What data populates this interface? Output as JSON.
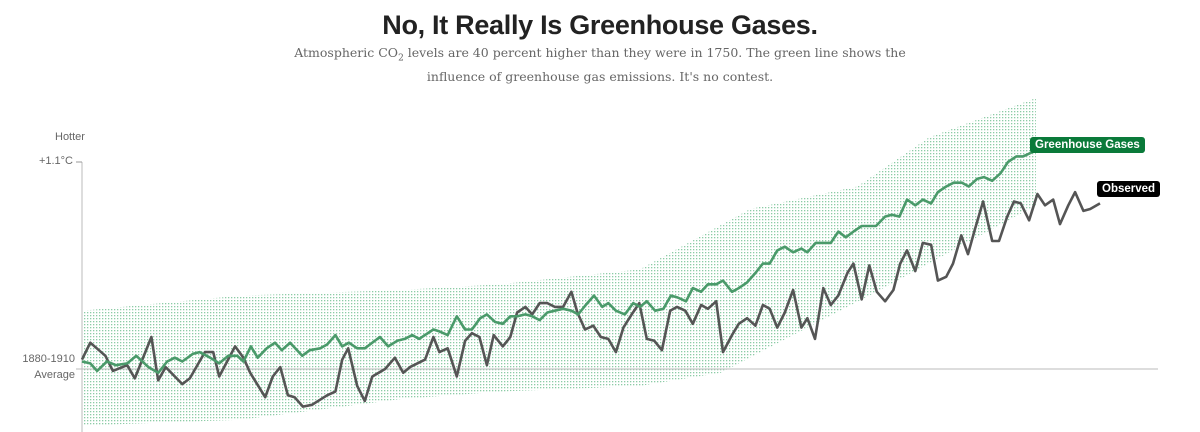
{
  "title": "No, It Really Is Greenhouse Gases.",
  "subtitle": {
    "part1": "Atmospheric CO",
    "sub": "2",
    "part2": " levels are 40 percent higher than they were in 1750. The green line shows the influence of greenhouse gas emissions. It's no contest."
  },
  "chart_data": {
    "type": "line",
    "title": "No, It Really Is Greenhouse Gases.",
    "ylabel_top": "Hotter",
    "y_ticks": [
      {
        "value": 1.1,
        "label": "+1.1°C"
      },
      {
        "value": 0,
        "label": "1880-1910 Average"
      }
    ],
    "xlim": [
      1880,
      2015
    ],
    "ylim": [
      -0.33,
      1.55
    ],
    "grid": false,
    "colors": {
      "greenhouse": "#4a9a6a",
      "greenhouse_label_bg": "#0a7a3a",
      "observed": "#555555",
      "observed_label_bg": "#000000",
      "band": "#8ccba6",
      "baseline": "#bbbbbb"
    },
    "series": [
      {
        "name": "Observed",
        "points": [
          [
            1880.0,
            0.05
          ],
          [
            1881.1,
            0.14
          ],
          [
            1883.1,
            0.07
          ],
          [
            1884.1,
            -0.01
          ],
          [
            1886.0,
            0.02
          ],
          [
            1887.0,
            -0.05
          ],
          [
            1889.2,
            0.17
          ],
          [
            1890.1,
            -0.06
          ],
          [
            1891.1,
            0.01
          ],
          [
            1893.3,
            -0.08
          ],
          [
            1894.3,
            -0.05
          ],
          [
            1896.3,
            0.09
          ],
          [
            1897.4,
            0.09
          ],
          [
            1898.2,
            -0.04
          ],
          [
            1900.3,
            0.12
          ],
          [
            1901.4,
            0.06
          ],
          [
            1902.3,
            -0.02
          ],
          [
            1904.3,
            -0.15
          ],
          [
            1905.3,
            -0.04
          ],
          [
            1906.3,
            0.01
          ],
          [
            1907.3,
            -0.14
          ],
          [
            1908.2,
            -0.15
          ],
          [
            1909.3,
            -0.2
          ],
          [
            1910.5,
            -0.19
          ],
          [
            1912.5,
            -0.14
          ],
          [
            1913.6,
            -0.12
          ],
          [
            1914.5,
            0.05
          ],
          [
            1915.3,
            0.11
          ],
          [
            1916.5,
            -0.09
          ],
          [
            1917.5,
            -0.17
          ],
          [
            1918.5,
            -0.04
          ],
          [
            1920.2,
            0.0
          ],
          [
            1921.5,
            0.06
          ],
          [
            1922.6,
            -0.02
          ],
          [
            1923.5,
            0.01
          ],
          [
            1925.5,
            0.05
          ],
          [
            1926.6,
            0.17
          ],
          [
            1927.4,
            0.09
          ],
          [
            1928.5,
            0.11
          ],
          [
            1929.7,
            -0.04
          ],
          [
            1930.8,
            0.15
          ],
          [
            1931.7,
            0.19
          ],
          [
            1932.7,
            0.17
          ],
          [
            1933.7,
            0.02
          ],
          [
            1934.6,
            0.18
          ],
          [
            1935.8,
            0.12
          ],
          [
            1936.8,
            0.17
          ],
          [
            1937.7,
            0.3
          ],
          [
            1938.8,
            0.33
          ],
          [
            1939.7,
            0.29
          ],
          [
            1940.7,
            0.35
          ],
          [
            1941.7,
            0.35
          ],
          [
            1942.7,
            0.33
          ],
          [
            1943.8,
            0.33
          ],
          [
            1944.9,
            0.41
          ],
          [
            1945.7,
            0.3
          ],
          [
            1946.7,
            0.21
          ],
          [
            1947.8,
            0.23
          ],
          [
            1948.8,
            0.17
          ],
          [
            1949.8,
            0.16
          ],
          [
            1950.8,
            0.09
          ],
          [
            1951.8,
            0.22
          ],
          [
            1952.9,
            0.29
          ],
          [
            1953.9,
            0.35
          ],
          [
            1954.9,
            0.16
          ],
          [
            1955.9,
            0.15
          ],
          [
            1956.9,
            0.1
          ],
          [
            1958.0,
            0.31
          ],
          [
            1958.9,
            0.33
          ],
          [
            1960.0,
            0.31
          ],
          [
            1961.0,
            0.24
          ],
          [
            1962.1,
            0.34
          ],
          [
            1963.0,
            0.32
          ],
          [
            1964.1,
            0.36
          ],
          [
            1965.0,
            0.09
          ],
          [
            1966.2,
            0.18
          ],
          [
            1967.1,
            0.24
          ],
          [
            1968.2,
            0.27
          ],
          [
            1969.3,
            0.23
          ],
          [
            1970.3,
            0.34
          ],
          [
            1971.2,
            0.32
          ],
          [
            1972.2,
            0.22
          ],
          [
            1973.2,
            0.3
          ],
          [
            1974.3,
            0.42
          ],
          [
            1975.4,
            0.22
          ],
          [
            1976.2,
            0.27
          ],
          [
            1977.2,
            0.16
          ],
          [
            1978.3,
            0.43
          ],
          [
            1979.3,
            0.34
          ],
          [
            1980.3,
            0.39
          ],
          [
            1981.5,
            0.51
          ],
          [
            1982.3,
            0.56
          ],
          [
            1983.4,
            0.37
          ],
          [
            1984.4,
            0.55
          ],
          [
            1985.4,
            0.41
          ],
          [
            1986.5,
            0.36
          ],
          [
            1987.6,
            0.42
          ],
          [
            1988.5,
            0.56
          ],
          [
            1989.4,
            0.63
          ],
          [
            1990.5,
            0.52
          ],
          [
            1991.5,
            0.67
          ],
          [
            1992.6,
            0.66
          ],
          [
            1993.5,
            0.47
          ],
          [
            1994.6,
            0.49
          ],
          [
            1995.5,
            0.56
          ],
          [
            1996.6,
            0.71
          ],
          [
            1997.5,
            0.61
          ],
          [
            1998.4,
            0.74
          ],
          [
            1999.5,
            0.89
          ],
          [
            2000.7,
            0.68
          ],
          [
            2001.6,
            0.68
          ],
          [
            2002.7,
            0.81
          ],
          [
            2003.6,
            0.89
          ],
          [
            2004.5,
            0.88
          ],
          [
            2005.6,
            0.79
          ],
          [
            2006.7,
            0.93
          ],
          [
            2007.7,
            0.87
          ],
          [
            2008.8,
            0.9
          ],
          [
            2009.7,
            0.77
          ],
          [
            2010.8,
            0.87
          ],
          [
            2011.7,
            0.94
          ],
          [
            2012.8,
            0.84
          ],
          [
            2013.7,
            0.85
          ],
          [
            2015.0,
            0.88
          ]
        ]
      },
      {
        "name": "Greenhouse Gases",
        "points": [
          [
            1880.0,
            0.04
          ],
          [
            1881.1,
            0.03
          ],
          [
            1882.0,
            -0.01
          ],
          [
            1883.3,
            0.04
          ],
          [
            1884.5,
            0.02
          ],
          [
            1886.0,
            0.03
          ],
          [
            1887.2,
            0.07
          ],
          [
            1888.8,
            0.01
          ],
          [
            1890.1,
            -0.02
          ],
          [
            1891.3,
            0.04
          ],
          [
            1892.3,
            0.06
          ],
          [
            1893.3,
            0.04
          ],
          [
            1894.7,
            0.08
          ],
          [
            1895.6,
            0.09
          ],
          [
            1897.0,
            0.06
          ],
          [
            1898.2,
            0.03
          ],
          [
            1899.4,
            0.07
          ],
          [
            1900.6,
            0.07
          ],
          [
            1901.4,
            0.04
          ],
          [
            1902.4,
            0.12
          ],
          [
            1903.3,
            0.06
          ],
          [
            1904.5,
            0.11
          ],
          [
            1905.6,
            0.14
          ],
          [
            1906.5,
            0.1
          ],
          [
            1907.6,
            0.14
          ],
          [
            1909.2,
            0.07
          ],
          [
            1910.2,
            0.1
          ],
          [
            1911.6,
            0.11
          ],
          [
            1912.5,
            0.13
          ],
          [
            1913.6,
            0.18
          ],
          [
            1914.5,
            0.12
          ],
          [
            1915.4,
            0.14
          ],
          [
            1916.5,
            0.11
          ],
          [
            1917.5,
            0.11
          ],
          [
            1919.5,
            0.17
          ],
          [
            1920.6,
            0.12
          ],
          [
            1921.8,
            0.15
          ],
          [
            1922.8,
            0.16
          ],
          [
            1923.8,
            0.18
          ],
          [
            1924.7,
            0.16
          ],
          [
            1926.6,
            0.21
          ],
          [
            1927.4,
            0.2
          ],
          [
            1928.5,
            0.18
          ],
          [
            1929.7,
            0.28
          ],
          [
            1930.8,
            0.21
          ],
          [
            1931.7,
            0.21
          ],
          [
            1932.8,
            0.27
          ],
          [
            1933.7,
            0.29
          ],
          [
            1934.8,
            0.25
          ],
          [
            1935.8,
            0.24
          ],
          [
            1936.8,
            0.28
          ],
          [
            1937.7,
            0.28
          ],
          [
            1938.8,
            0.29
          ],
          [
            1939.7,
            0.28
          ],
          [
            1940.7,
            0.26
          ],
          [
            1941.7,
            0.3
          ],
          [
            1942.7,
            0.31
          ],
          [
            1943.8,
            0.32
          ],
          [
            1944.9,
            0.31
          ],
          [
            1945.8,
            0.29
          ],
          [
            1946.8,
            0.34
          ],
          [
            1947.9,
            0.39
          ],
          [
            1949.0,
            0.33
          ],
          [
            1949.8,
            0.35
          ],
          [
            1950.8,
            0.31
          ],
          [
            1952.0,
            0.29
          ],
          [
            1953.1,
            0.35
          ],
          [
            1954.0,
            0.33
          ],
          [
            1954.9,
            0.36
          ],
          [
            1956.0,
            0.31
          ],
          [
            1957.1,
            0.32
          ],
          [
            1958.1,
            0.39
          ],
          [
            1959.0,
            0.38
          ],
          [
            1960.1,
            0.36
          ],
          [
            1961.0,
            0.43
          ],
          [
            1962.1,
            0.41
          ],
          [
            1963.0,
            0.45
          ],
          [
            1964.1,
            0.45
          ],
          [
            1965.0,
            0.47
          ],
          [
            1966.2,
            0.41
          ],
          [
            1967.1,
            0.43
          ],
          [
            1968.2,
            0.46
          ],
          [
            1969.3,
            0.51
          ],
          [
            1970.3,
            0.56
          ],
          [
            1971.2,
            0.56
          ],
          [
            1972.2,
            0.63
          ],
          [
            1973.2,
            0.65
          ],
          [
            1974.3,
            0.62
          ],
          [
            1975.4,
            0.64
          ],
          [
            1976.2,
            0.62
          ],
          [
            1977.3,
            0.67
          ],
          [
            1979.3,
            0.67
          ],
          [
            1980.3,
            0.73
          ],
          [
            1981.3,
            0.7
          ],
          [
            1982.3,
            0.73
          ],
          [
            1983.4,
            0.76
          ],
          [
            1985.3,
            0.76
          ],
          [
            1986.5,
            0.81
          ],
          [
            1987.4,
            0.82
          ],
          [
            1988.4,
            0.81
          ],
          [
            1989.4,
            0.9
          ],
          [
            1990.5,
            0.87
          ],
          [
            1991.5,
            0.9
          ],
          [
            1992.6,
            0.88
          ],
          [
            1993.5,
            0.94
          ],
          [
            1994.6,
            0.97
          ],
          [
            1995.6,
            0.99
          ],
          [
            1996.7,
            0.99
          ],
          [
            1997.6,
            0.97
          ],
          [
            1998.7,
            1.01
          ],
          [
            1999.6,
            1.02
          ],
          [
            2000.7,
            1.0
          ],
          [
            2001.8,
            1.04
          ],
          [
            2002.8,
            1.1
          ],
          [
            2003.9,
            1.13
          ],
          [
            2004.8,
            1.13
          ],
          [
            2005.9,
            1.15
          ],
          [
            2006.7,
            1.17
          ]
        ]
      }
    ],
    "band": {
      "upper": [
        [
          1880,
          0.31
        ],
        [
          1901,
          0.39
        ],
        [
          1922.2,
          0.42
        ],
        [
          1935.4,
          0.45
        ],
        [
          1954,
          0.53
        ],
        [
          1968.6,
          0.85
        ],
        [
          1982.8,
          0.97
        ],
        [
          1992.3,
          1.23
        ],
        [
          2006.5,
          1.44
        ]
      ],
      "lower": [
        [
          1880,
          -0.3
        ],
        [
          1901,
          -0.27
        ],
        [
          1922.2,
          -0.16
        ],
        [
          1935.4,
          -0.12
        ],
        [
          1954,
          -0.09
        ],
        [
          1964.7,
          -0.02
        ],
        [
          1985.8,
          0.42
        ],
        [
          2006.5,
          0.87
        ]
      ]
    }
  }
}
